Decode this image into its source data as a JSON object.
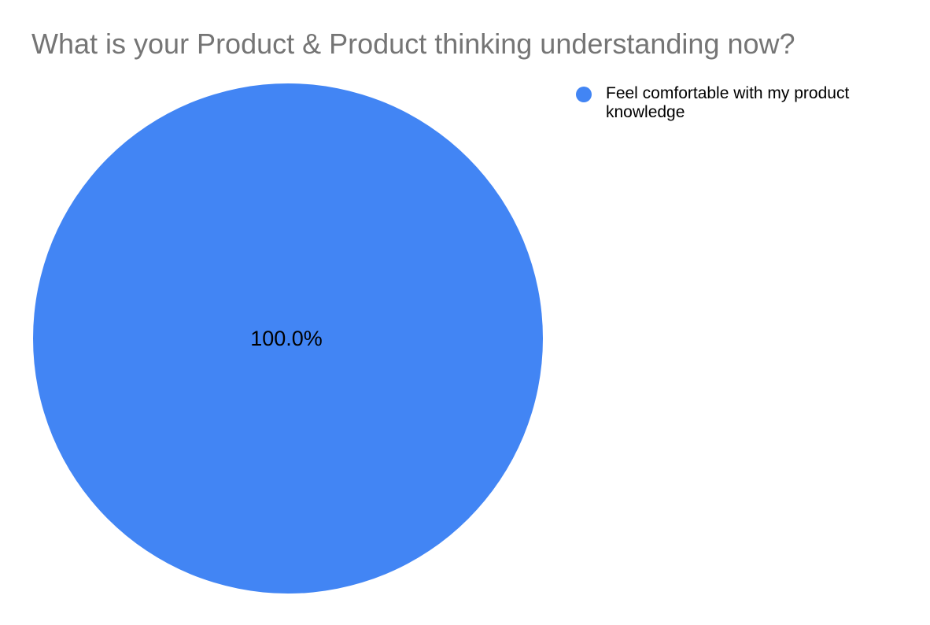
{
  "title": "What is your Product & Product thinking understanding now?",
  "chart_data": {
    "type": "pie",
    "title": "What is your Product & Product thinking understanding now?",
    "slices": [
      {
        "label": "Feel comfortable with my product knowledge",
        "value": 100.0,
        "display": "100.0%",
        "color": "#4285f4"
      }
    ],
    "legend_position": "right",
    "slice_label_position": "inside-center"
  },
  "legend": {
    "items": [
      {
        "label": "Feel comfortable with my product knowledge",
        "color": "#4285f4"
      }
    ]
  },
  "colors": {
    "slice_blue": "#4285f4",
    "title_gray": "#757575",
    "label_black": "#000000",
    "background": "#ffffff"
  }
}
